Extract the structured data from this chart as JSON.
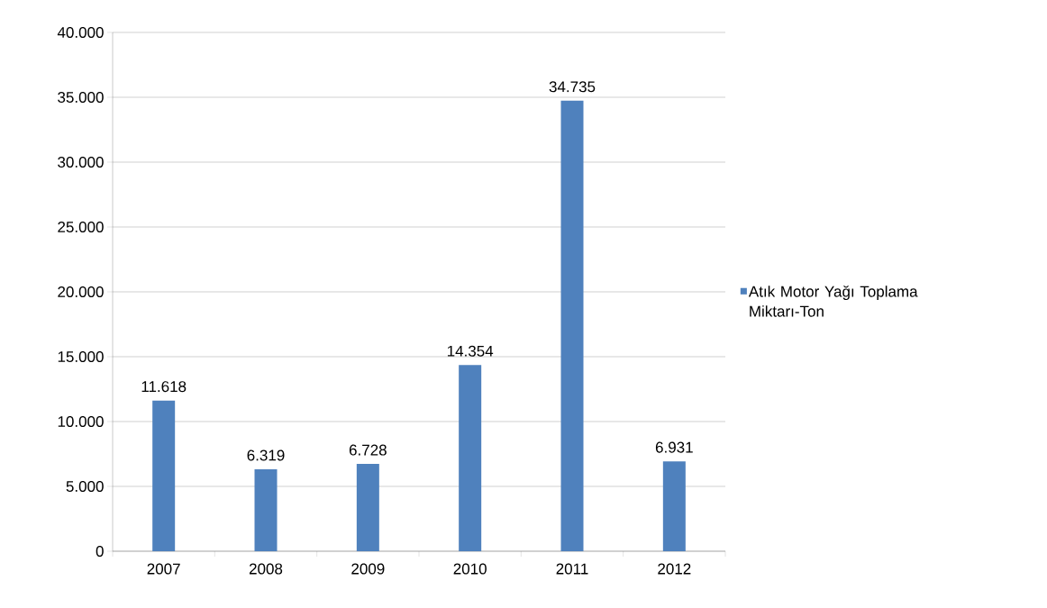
{
  "chart_data": {
    "type": "bar",
    "categories": [
      "2007",
      "2008",
      "2009",
      "2010",
      "2011",
      "2012"
    ],
    "series": [
      {
        "name": "Atık Motor Yağı Toplama Miktarı-Ton",
        "color": "#4f81bd",
        "values": [
          11618,
          6319,
          6728,
          14354,
          34735,
          6931
        ],
        "value_labels": [
          "11.618",
          "6.319",
          "6.728",
          "14.354",
          "34.735",
          "6.931"
        ]
      }
    ],
    "ylim": [
      0,
      40000
    ],
    "yticks": [
      {
        "value": 0,
        "label": "0"
      },
      {
        "value": 5000,
        "label": "5.000"
      },
      {
        "value": 10000,
        "label": "10.000"
      },
      {
        "value": 15000,
        "label": "15.000"
      },
      {
        "value": 20000,
        "label": "20.000"
      },
      {
        "value": 25000,
        "label": "25.000"
      },
      {
        "value": 30000,
        "label": "30.000"
      },
      {
        "value": 35000,
        "label": "35.000"
      },
      {
        "value": 40000,
        "label": "40.000"
      }
    ],
    "grid": "y",
    "legend": "right"
  }
}
